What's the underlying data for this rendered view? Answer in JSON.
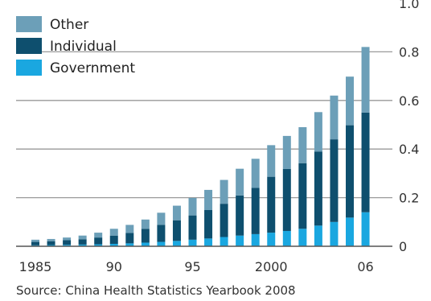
{
  "chart_data": {
    "type": "bar",
    "stacked": true,
    "categories": [
      "1985",
      "1986",
      "1987",
      "1988",
      "1989",
      "1990",
      "1991",
      "1992",
      "1993",
      "1994",
      "1995",
      "1996",
      "1997",
      "1998",
      "1999",
      "2000",
      "2001",
      "2002",
      "2003",
      "2004",
      "2005",
      "2006"
    ],
    "x_tick_labels": [
      "1985",
      "",
      "",
      "",
      "",
      "90",
      "",
      "",
      "",
      "",
      "95",
      "",
      "",
      "",
      "",
      "2000",
      "",
      "",
      "",
      "",
      "",
      "06"
    ],
    "series": [
      {
        "name": "Government",
        "color": "#1aa7e0",
        "values": [
          0.004,
          0.005,
          0.006,
          0.007,
          0.008,
          0.01,
          0.012,
          0.015,
          0.018,
          0.022,
          0.027,
          0.032,
          0.038,
          0.044,
          0.05,
          0.056,
          0.063,
          0.072,
          0.085,
          0.1,
          0.118,
          0.14
        ]
      },
      {
        "name": "Individual",
        "color": "#0e4f6e",
        "values": [
          0.014,
          0.016,
          0.019,
          0.022,
          0.028,
          0.034,
          0.043,
          0.057,
          0.07,
          0.085,
          0.1,
          0.117,
          0.137,
          0.165,
          0.19,
          0.23,
          0.255,
          0.27,
          0.305,
          0.34,
          0.38,
          0.41
        ]
      },
      {
        "name": "Other",
        "color": "#6c9fb8",
        "values": [
          0.009,
          0.009,
          0.011,
          0.015,
          0.02,
          0.028,
          0.033,
          0.038,
          0.05,
          0.06,
          0.072,
          0.083,
          0.098,
          0.11,
          0.12,
          0.13,
          0.136,
          0.148,
          0.162,
          0.18,
          0.2,
          0.27
        ]
      }
    ],
    "y_ticks": [
      0,
      0.2,
      0.4,
      0.6,
      0.8,
      1.0
    ],
    "y_tick_labels": [
      "0",
      "0.2",
      "0.4",
      "0.6",
      "0.8",
      "1.0"
    ],
    "ylim": [
      0,
      1.0
    ],
    "y_axis_side": "right",
    "grid": true,
    "legend_position": "top-left",
    "legend_order": [
      "Other",
      "Individual",
      "Government"
    ],
    "source": "Source: China Health Statistics Yearbook 2008"
  }
}
